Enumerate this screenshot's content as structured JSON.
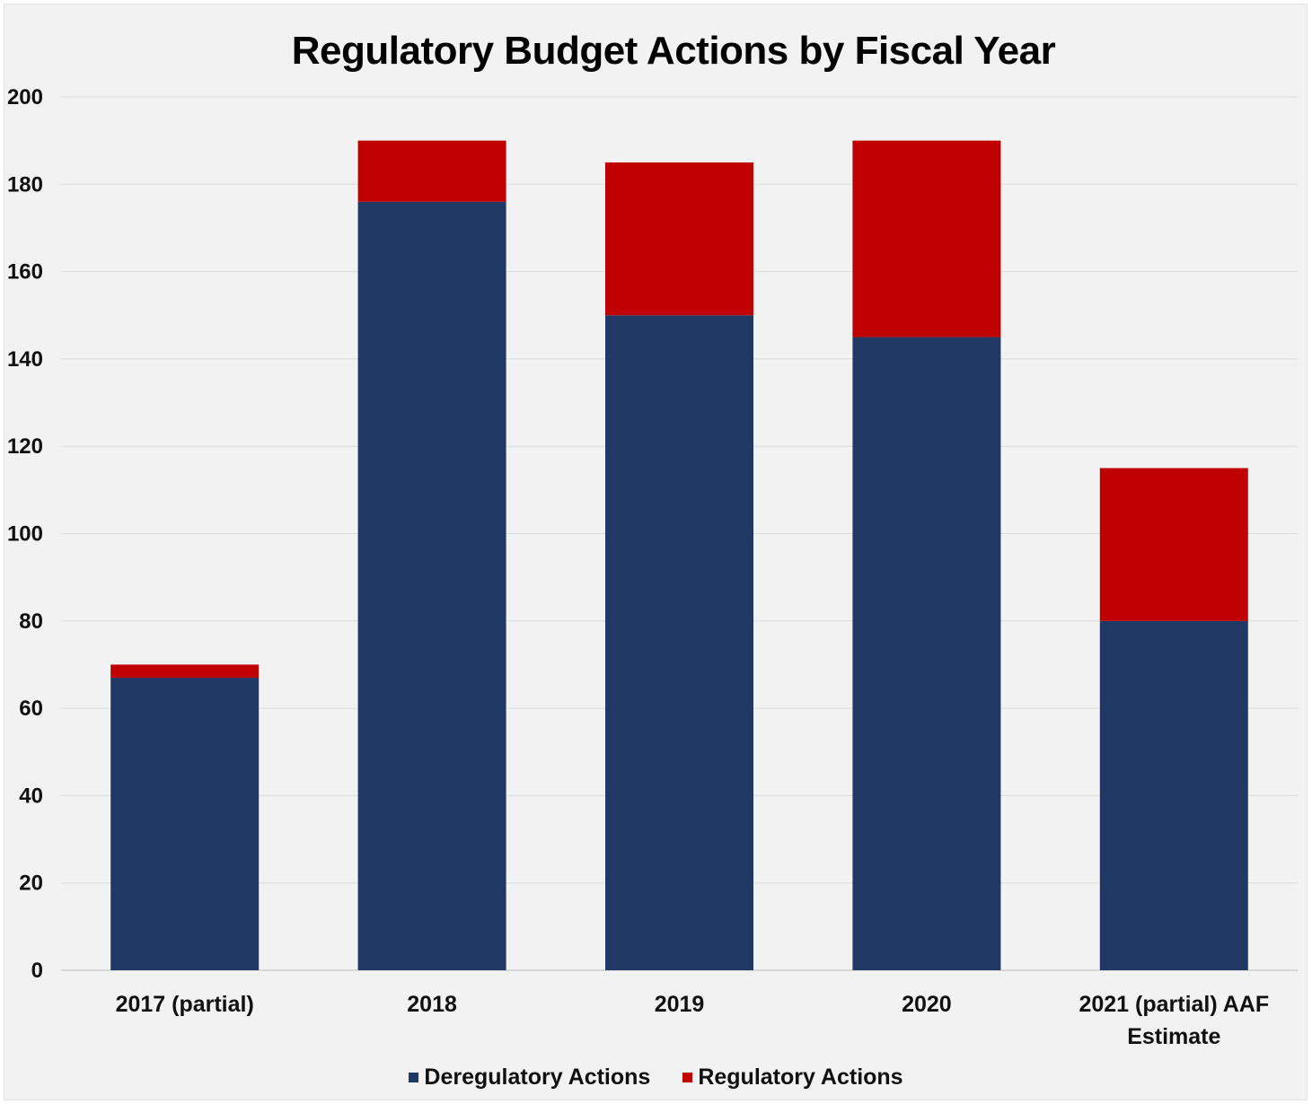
{
  "chart_data": {
    "type": "bar",
    "stacked": true,
    "title": "Regulatory Budget Actions by Fiscal Year",
    "xlabel": "",
    "ylabel": "",
    "ylim": [
      0,
      200
    ],
    "yticks": [
      0,
      20,
      40,
      60,
      80,
      100,
      120,
      140,
      160,
      180,
      200
    ],
    "grid": true,
    "legend_position": "bottom",
    "categories": [
      [
        "2017 (partial)"
      ],
      [
        "2018"
      ],
      [
        "2019"
      ],
      [
        "2020"
      ],
      [
        "2021 (partial) AAF",
        "Estimate"
      ]
    ],
    "series": [
      {
        "name": "Deregulatory Actions",
        "color": "#203864",
        "values": [
          67,
          176,
          150,
          145,
          80
        ]
      },
      {
        "name": "Regulatory Actions",
        "color": "#c00000",
        "values": [
          3,
          14,
          35,
          45,
          35
        ]
      }
    ]
  }
}
